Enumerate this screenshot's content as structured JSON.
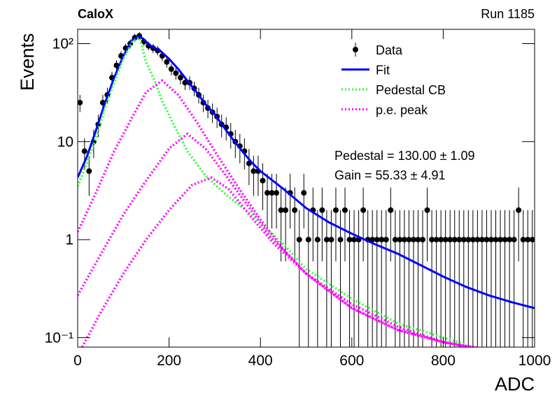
{
  "chart_data": {
    "type": "errorbar-fit",
    "title": "CaloX",
    "subtitle": "Run 1185",
    "x_label": "ADC",
    "y_label": "Events",
    "log_y": true,
    "xlim": [
      0,
      1000
    ],
    "xticks": [
      0,
      200,
      400,
      600,
      800,
      1000
    ],
    "ylim": [
      0.08,
      140
    ],
    "yticks": [
      {
        "value": 0.1,
        "label": "10⁻¹"
      },
      1,
      10,
      {
        "value": 100,
        "label": "10²"
      }
    ],
    "legend": "top-right",
    "annotations": [
      "Pedestal = 130.00 ± 1.09",
      "Gain = 55.33 ± 4.91"
    ],
    "series": [
      {
        "name": "Data",
        "color": "#000000",
        "style": "errorbar",
        "x": [
          5,
          15,
          25,
          35,
          45,
          55,
          65,
          75,
          85,
          95,
          105,
          115,
          125,
          135,
          145,
          155,
          165,
          175,
          185,
          195,
          205,
          215,
          225,
          235,
          245,
          255,
          265,
          275,
          285,
          295,
          305,
          315,
          325,
          335,
          345,
          355,
          365,
          375,
          385,
          395,
          405,
          415,
          425,
          435,
          445,
          455,
          465,
          475,
          485,
          495,
          505,
          515,
          525,
          535,
          545,
          555,
          565,
          575,
          585,
          595,
          605,
          615,
          625,
          635,
          645,
          655,
          665,
          675,
          685,
          695,
          705,
          715,
          725,
          735,
          745,
          755,
          765,
          775,
          785,
          795,
          805,
          815,
          825,
          835,
          845,
          855,
          865,
          875,
          885,
          895,
          905,
          915,
          925,
          935,
          945,
          955,
          965,
          975,
          985,
          995
        ],
        "values": [
          25,
          8,
          5,
          10,
          15,
          25,
          30,
          45,
          60,
          75,
          90,
          100,
          115,
          120,
          105,
          95,
          90,
          85,
          75,
          65,
          55,
          50,
          45,
          40,
          40,
          35,
          30,
          25,
          22,
          20,
          18,
          15,
          14,
          12,
          10,
          9,
          8,
          6,
          5,
          5,
          4,
          3,
          3,
          3,
          2,
          2,
          3,
          2,
          1,
          3,
          1,
          2,
          1,
          2,
          1,
          1,
          2,
          1,
          2,
          1,
          1,
          1,
          2,
          1,
          1,
          1,
          1,
          1,
          2,
          1,
          1,
          1,
          1,
          1,
          1,
          1,
          2,
          1,
          1,
          1,
          1,
          1,
          1,
          1,
          1,
          1,
          1,
          1,
          1,
          1,
          1,
          1,
          1,
          1,
          1,
          1,
          2,
          1,
          1,
          1
        ],
        "errors": [
          5,
          2.8,
          2.2,
          3.2,
          3.9,
          5,
          5.5,
          6.7,
          7.7,
          8.7,
          9.5,
          10,
          10.7,
          11,
          10.2,
          9.7,
          9.5,
          9.2,
          8.7,
          8.1,
          7.4,
          7.1,
          6.7,
          6.3,
          6.3,
          5.9,
          5.5,
          5,
          4.7,
          4.5,
          4.2,
          3.9,
          3.7,
          3.5,
          3.2,
          3,
          2.8,
          2.4,
          2.2,
          2.2,
          2,
          1.7,
          1.7,
          1.7,
          1.4,
          1.4,
          1.7,
          1.4,
          1,
          1.7,
          1,
          1.4,
          1,
          1.4,
          1,
          1,
          1.4,
          1,
          1.4,
          1,
          1,
          1,
          1.4,
          1,
          1,
          1,
          1,
          1,
          1.4,
          1,
          1,
          1,
          1,
          1,
          1,
          1,
          1.4,
          1,
          1,
          1,
          1,
          1,
          1,
          1,
          1,
          1,
          1,
          1,
          1,
          1,
          1,
          1,
          1,
          1,
          1,
          1,
          1.4,
          1,
          1,
          1
        ]
      },
      {
        "name": "Fit",
        "color": "#0000ff",
        "style": "solid",
        "x": [
          0,
          20,
          40,
          60,
          80,
          100,
          120,
          135,
          160,
          180,
          200,
          220,
          240,
          260,
          280,
          300,
          320,
          340,
          360,
          380,
          400,
          450,
          500,
          550,
          600,
          650,
          700,
          750,
          800,
          850,
          900,
          950,
          1000
        ],
        "values": [
          4.3,
          7,
          13,
          25,
          45,
          75,
          110,
          120,
          95,
          85,
          70,
          55,
          42,
          32,
          24,
          19,
          14,
          10.5,
          8,
          6.2,
          5,
          3.3,
          2.1,
          1.5,
          1.15,
          0.9,
          0.72,
          0.55,
          0.42,
          0.33,
          0.27,
          0.23,
          0.2
        ]
      },
      {
        "name": "Pedestal CB",
        "color": "#33ff33",
        "style": "dotted",
        "x": [
          0,
          20,
          40,
          60,
          80,
          100,
          120,
          135,
          150,
          170,
          185,
          210,
          240,
          280,
          320,
          380,
          450,
          500,
          600,
          700,
          800,
          850
        ],
        "values": [
          3.5,
          6,
          11,
          22,
          40,
          70,
          105,
          115,
          65,
          40,
          26,
          15,
          8,
          4.5,
          3,
          1.8,
          0.9,
          0.5,
          0.25,
          0.14,
          0.1,
          0.085
        ]
      },
      {
        "name": "p.e. peak",
        "color": "#ff00ff",
        "style": "dotted",
        "x": [
          0,
          40,
          80,
          120,
          150,
          185,
          220,
          260,
          300,
          350,
          400,
          450,
          500,
          600,
          700,
          800,
          900
        ],
        "values": [
          1.2,
          3,
          8,
          18,
          32,
          42,
          30,
          16,
          8,
          3.5,
          1.6,
          0.8,
          0.45,
          0.2,
          0.12,
          0.09,
          0.075
        ]
      },
      {
        "color": "#ff00ff",
        "style": "dotted",
        "x": [
          0,
          50,
          100,
          150,
          200,
          240,
          280,
          320,
          370,
          420,
          500,
          600,
          700,
          800,
          900
        ],
        "values": [
          0.27,
          0.7,
          1.8,
          4,
          8.5,
          12,
          8.5,
          4.8,
          2.3,
          1.1,
          0.45,
          0.2,
          0.12,
          0.09,
          0.075
        ]
      },
      {
        "color": "#ff00ff",
        "style": "dotted",
        "x": [
          10,
          50,
          100,
          150,
          200,
          250,
          292,
          330,
          380,
          430,
          500,
          600,
          700,
          800,
          850
        ],
        "values": [
          0.08,
          0.18,
          0.45,
          1,
          2,
          3.6,
          4.3,
          3.3,
          1.7,
          0.9,
          0.45,
          0.22,
          0.13,
          0.09,
          0.08
        ]
      }
    ]
  }
}
